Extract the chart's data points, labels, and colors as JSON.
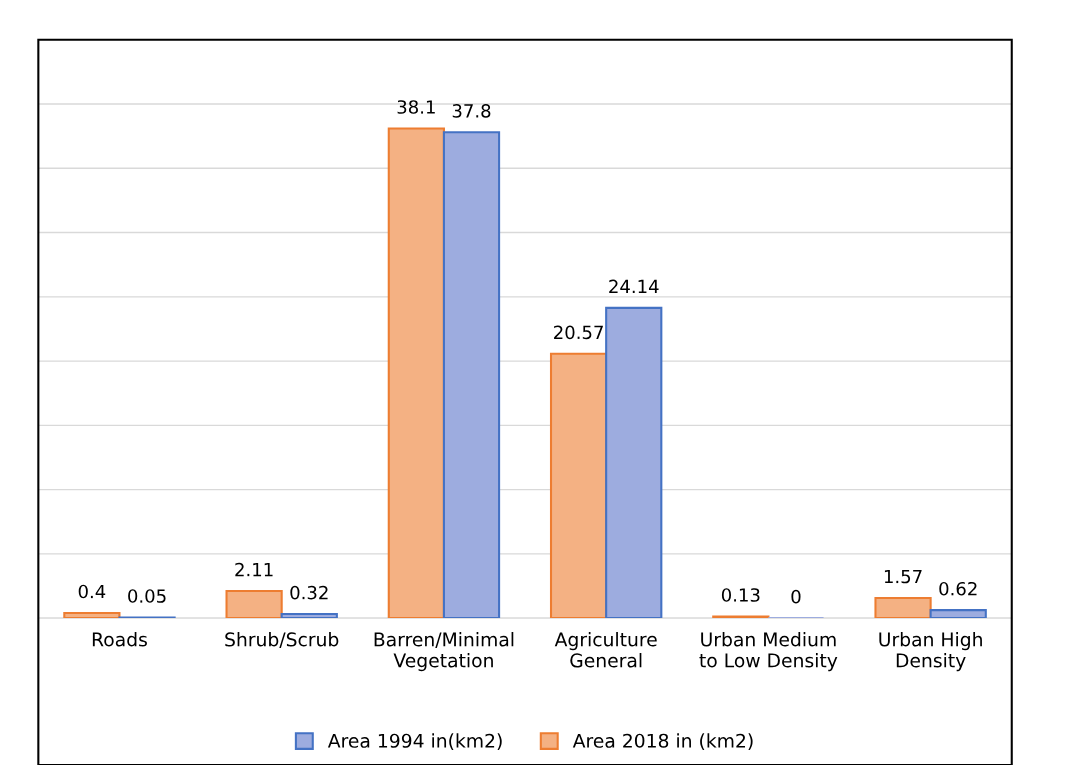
{
  "chart_data": {
    "type": "bar",
    "categories": [
      "Roads",
      "Shrub/Scrub",
      "Barren/Minimal\nVegetation",
      "Agriculture\nGeneral",
      "Urban Medium\nto Low Density",
      "Urban High\nDensity"
    ],
    "series": [
      {
        "name": "Area 2018 in (km2)",
        "color": "#f4b183",
        "values": [
          0.4,
          2.11,
          38.1,
          20.57,
          0.13,
          1.57
        ]
      },
      {
        "name": "Area 1994 in(km2)",
        "color": "#9dacdf",
        "values": [
          0.05,
          0.32,
          37.8,
          24.14,
          0,
          0.62
        ]
      }
    ],
    "ylim": [
      0,
      45
    ],
    "yticks": [
      {
        "value": 0,
        "label": null
      },
      {
        "value": 5,
        "label": null
      },
      {
        "value": 10,
        "label": null
      },
      {
        "value": 15,
        "label": null
      },
      {
        "value": 20,
        "label": null
      },
      {
        "value": 25,
        "label": null
      },
      {
        "value": 30,
        "label": null
      },
      {
        "value": 35,
        "label": null
      },
      {
        "value": 40,
        "label": null
      }
    ],
    "grid": "y",
    "data_labels": true,
    "legend": "bottom"
  }
}
